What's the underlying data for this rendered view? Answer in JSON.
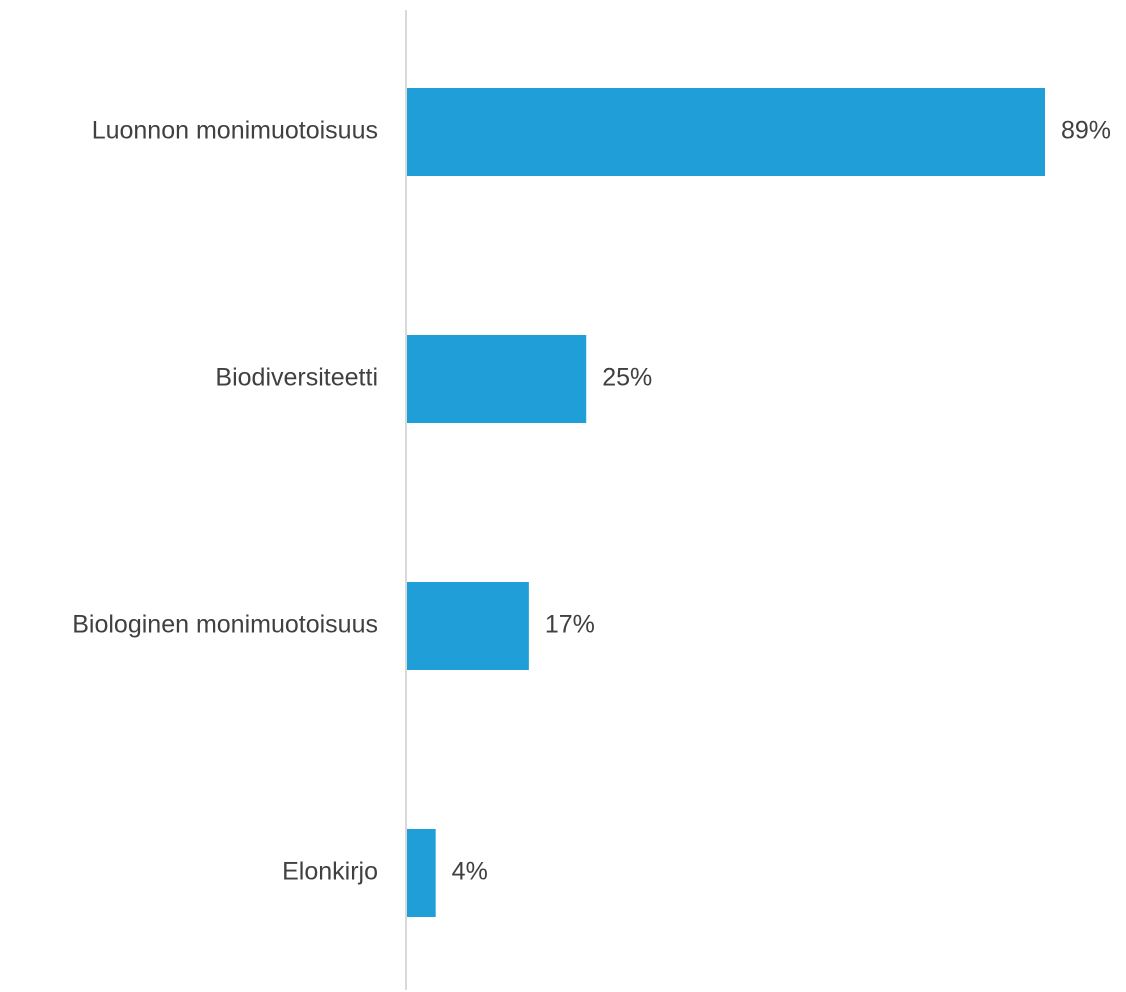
{
  "chart_data": {
    "type": "bar",
    "orientation": "horizontal",
    "categories": [
      "Luonnon monimuotoisuus",
      "Biodiversiteetti",
      "Biologinen monimuotoisuus",
      "Elonkirjo"
    ],
    "values": [
      89,
      25,
      17,
      4
    ],
    "value_labels": [
      "89%",
      "25%",
      "17%",
      "4%"
    ],
    "unit": "%",
    "xlim": [
      0,
      100
    ],
    "grid": false,
    "legend": "none",
    "colors": {
      "bar": "#1f9ed8",
      "axis": "#d9d9d9",
      "text": "#404040"
    }
  }
}
